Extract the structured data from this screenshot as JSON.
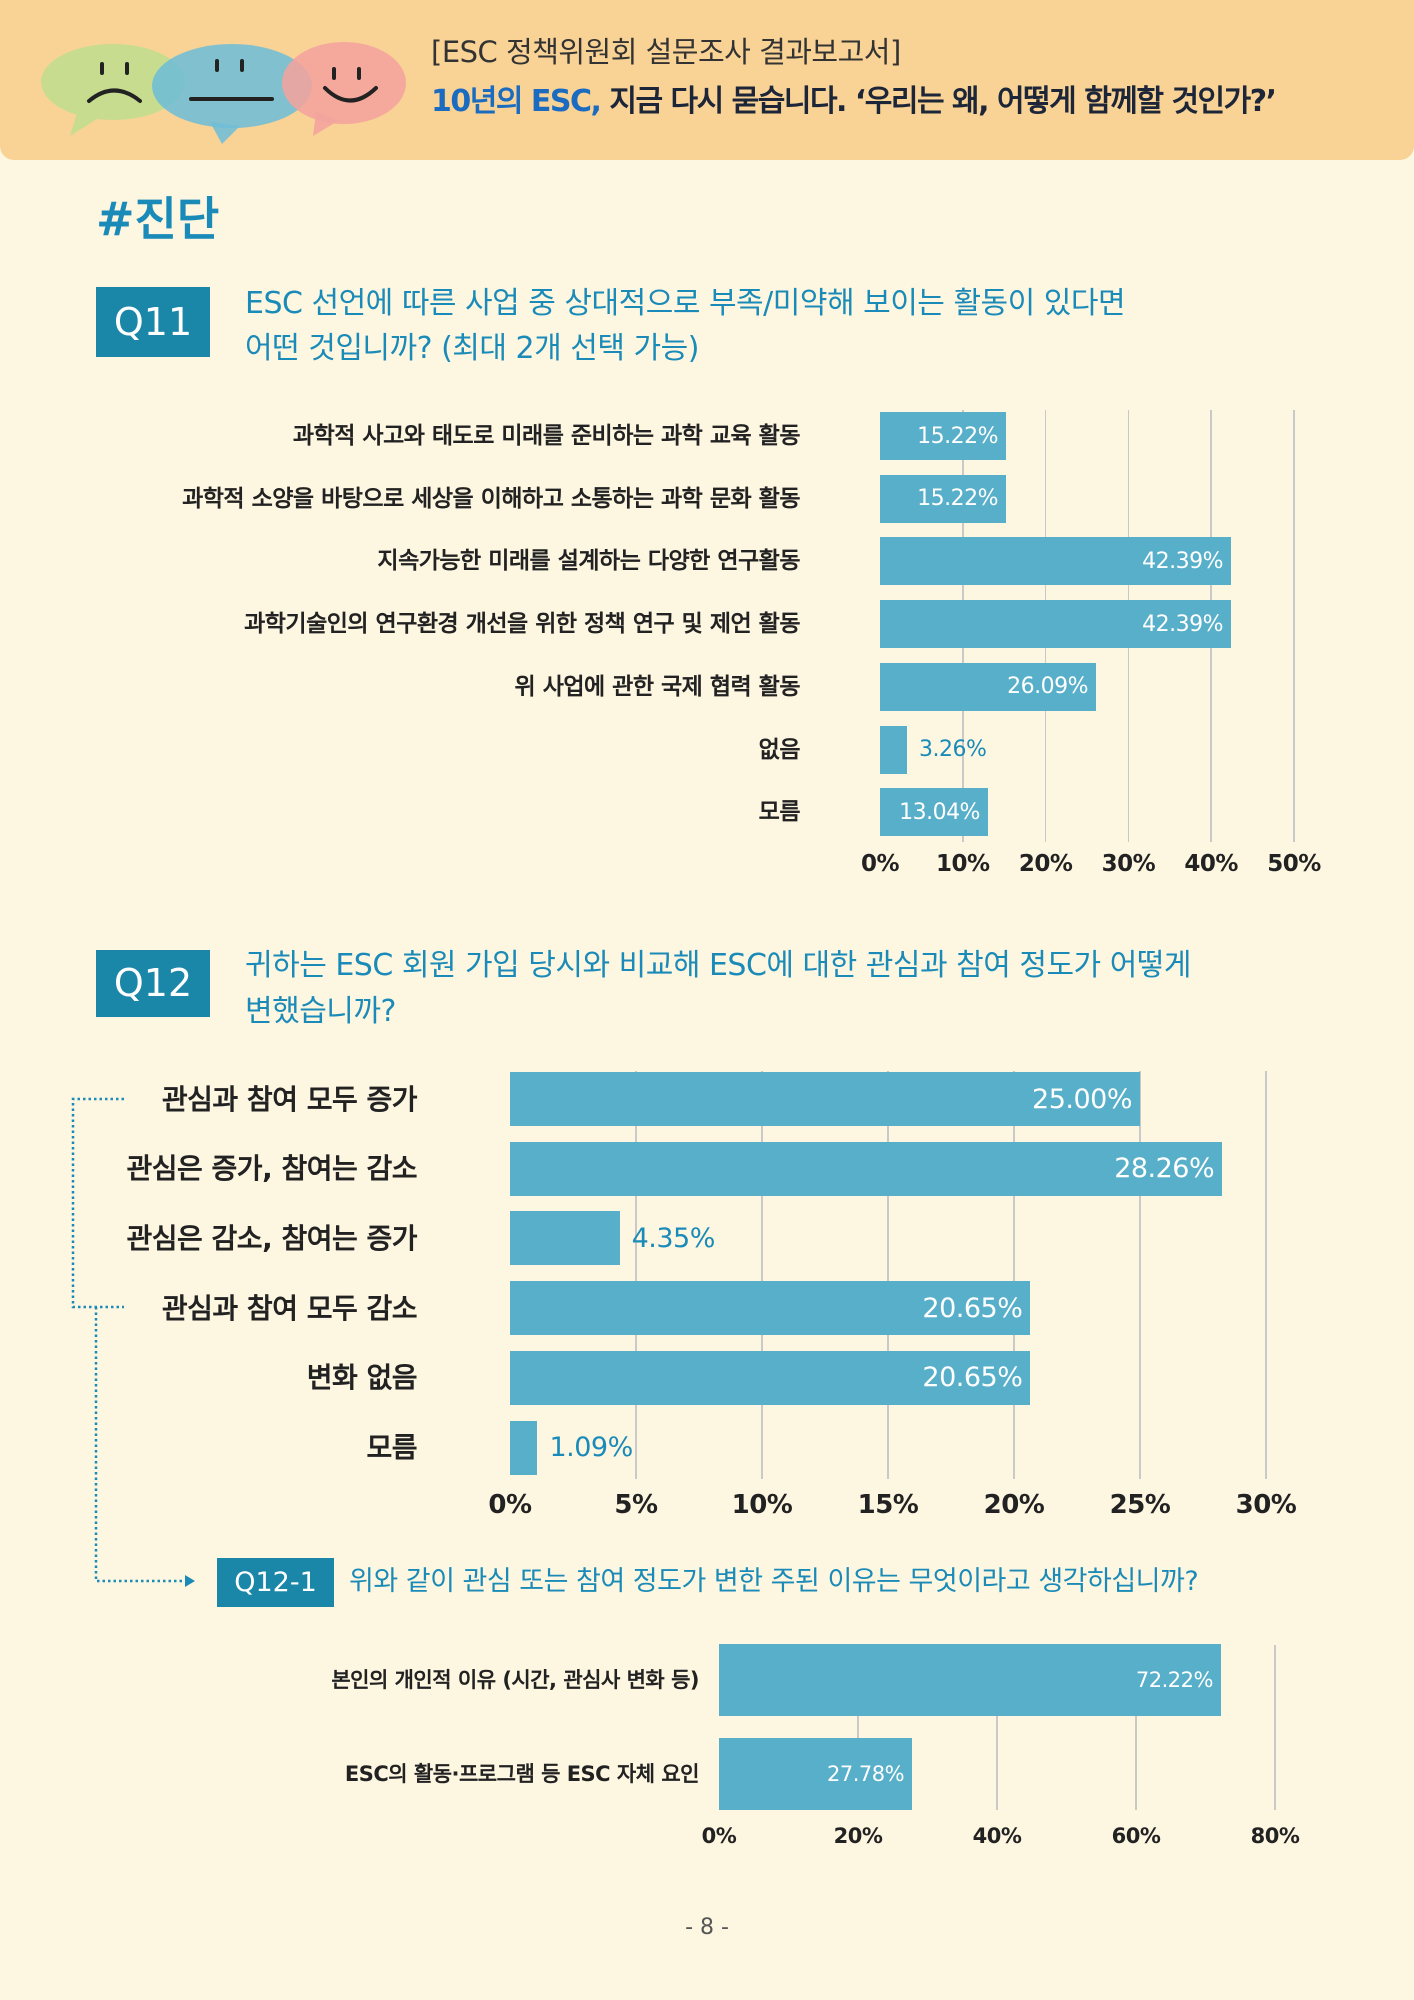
{
  "header": {
    "subtitle": "[ESC 정책위원회 설문조사 결과보고서]",
    "title_highlight": "10년의 ESC,",
    "title_rest": " 지금 다시 묻습니다. ‘우리는 왜, 어떻게 함께할 것인가?’"
  },
  "section_tag": "#진단",
  "questions": {
    "q11": {
      "number": "Q11",
      "line1": "ESC 선언에 따른 사업 중 상대적으로 부족/미약해 보이는 활동이 있다면",
      "line2": "어떤 것입니까? (최대 2개 선택 가능)"
    },
    "q12": {
      "number": "Q12",
      "line1": "귀하는 ESC 회원 가입 당시와 비교해 ESC에 대한 관심과 참여 정도가 어떻게",
      "line2": "변했습니까?"
    },
    "q12_1": {
      "number": "Q12-1",
      "line1": "위와 같이 관심 또는 참여 정도가 변한 주된 이유는 무엇이라고 생각하십니까?"
    }
  },
  "page_number": "- 8 -",
  "icons": [
    "sad-face-bubble-icon",
    "neutral-face-bubble-icon",
    "happy-face-bubble-icon",
    "dotted-connector-arrow-icon"
  ],
  "colors": {
    "page_background": "#fdf6e1",
    "header_band": "#f9d395",
    "title_highlight": "#1b6cc0",
    "title_text": "#1d2638",
    "accent": "#1a8bb8",
    "question_box": "#1a86a8",
    "bar": "#58afc9",
    "bubble_green": "#c7dc8e",
    "bubble_blue": "#6fbdd7",
    "bubble_pink": "#f2a39d"
  },
  "chart_data": [
    {
      "id": "q11",
      "type": "bar",
      "orientation": "horizontal",
      "title": "",
      "xlabel": "",
      "ylabel": "",
      "categories": [
        "과학적 사고와 태도로 미래를 준비하는 과학 교육 활동",
        "과학적 소양을 바탕으로 세상을 이해하고 소통하는 과학 문화 활동",
        "지속가능한 미래를 설계하는 다양한 연구활동",
        "과학기술인의 연구환경 개선을 위한 정책 연구 및 제언 활동",
        "위 사업에 관한 국제 협력 활동",
        "없음",
        "모름"
      ],
      "values": [
        15.22,
        15.22,
        42.39,
        42.39,
        26.09,
        3.26,
        13.04
      ],
      "unit": "%",
      "xlim": [
        0,
        50
      ],
      "ticks": [
        0,
        10,
        20,
        30,
        40,
        50
      ],
      "grid": true
    },
    {
      "id": "q12",
      "type": "bar",
      "orientation": "horizontal",
      "title": "",
      "xlabel": "",
      "ylabel": "",
      "categories": [
        "관심과 참여 모두 증가",
        "관심은 증가, 참여는 감소",
        "관심은 감소, 참여는 증가",
        "관심과 참여 모두 감소",
        "변화 없음",
        "모름"
      ],
      "values": [
        25.0,
        28.26,
        4.35,
        20.65,
        20.65,
        1.09
      ],
      "unit": "%",
      "xlim": [
        0,
        30
      ],
      "ticks": [
        0,
        5,
        10,
        15,
        20,
        25,
        30
      ],
      "grid": true
    },
    {
      "id": "q12_1",
      "type": "bar",
      "orientation": "horizontal",
      "title": "",
      "xlabel": "",
      "ylabel": "",
      "categories": [
        "본인의 개인적 이유 (시간, 관심사 변화 등)",
        "ESC의 활동·프로그램 등 ESC 자체 요인"
      ],
      "values": [
        72.22,
        27.78
      ],
      "unit": "%",
      "xlim": [
        0,
        80
      ],
      "ticks": [
        0,
        20,
        40,
        60,
        80
      ],
      "grid": true
    }
  ]
}
